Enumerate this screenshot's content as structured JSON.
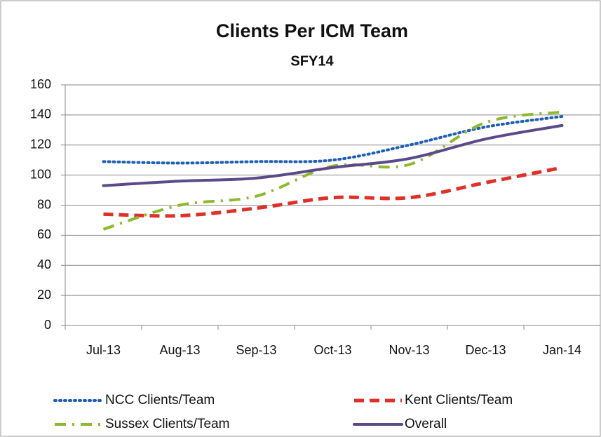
{
  "chart_data": {
    "type": "line",
    "title": "Clients Per ICM Team",
    "subtitle": "SFY14",
    "categories": [
      "Jul-13",
      "Aug-13",
      "Sep-13",
      "Oct-13",
      "Nov-13",
      "Dec-13",
      "Jan-14"
    ],
    "series": [
      {
        "name": "NCC Clients/Team",
        "color": "#1f5fb4",
        "style": "dotted",
        "values": [
          109,
          108,
          109,
          110,
          120,
          132,
          139
        ]
      },
      {
        "name": "Kent Clients/Team",
        "color": "#e0302a",
        "style": "dashed",
        "values": [
          74,
          73,
          78,
          85,
          85,
          95,
          105
        ]
      },
      {
        "name": "Sussex Clients/Team",
        "color": "#8db92e",
        "style": "dashdot",
        "values": [
          64,
          80,
          86,
          106,
          107,
          135,
          142
        ]
      },
      {
        "name": "Overall",
        "color": "#5b4a8a",
        "style": "solid",
        "values": [
          93,
          96,
          98,
          105,
          111,
          124,
          133
        ]
      }
    ],
    "ylim": [
      0,
      160
    ],
    "yticks": [
      0,
      20,
      40,
      60,
      80,
      100,
      120,
      140,
      160
    ],
    "grid": true,
    "legend": "bottom"
  }
}
